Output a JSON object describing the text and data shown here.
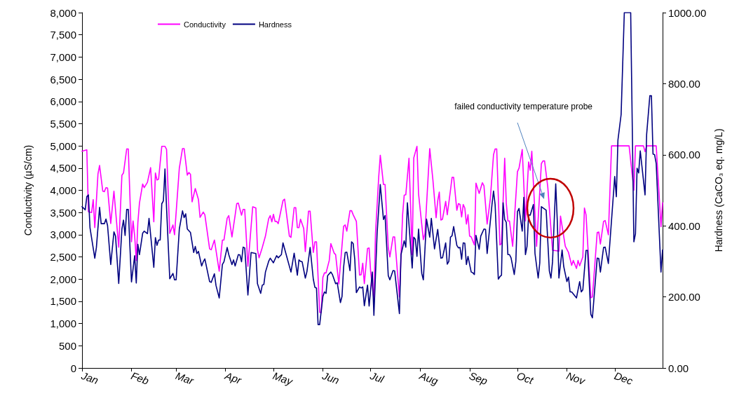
{
  "chart_data": {
    "type": "line",
    "ylabel": "Conductivity (µS/cm)",
    "y2label": "Hardness (CaCO₃ eq. mg/L)",
    "xlim": [
      "--01-01",
      "--12-31"
    ],
    "xticks": [
      {
        "value": "--01-01",
        "label": "Jan"
      },
      {
        "value": "--02-01",
        "label": "Feb"
      },
      {
        "value": "--03-01",
        "label": "Mar"
      },
      {
        "value": "--04-01",
        "label": "Apr"
      },
      {
        "value": "--05-01",
        "label": "May"
      },
      {
        "value": "--06-01",
        "label": "Jun"
      },
      {
        "value": "--07-01",
        "label": "Jul"
      },
      {
        "value": "--08-01",
        "label": "Aug"
      },
      {
        "value": "--09-01",
        "label": "Sep"
      },
      {
        "value": "--10-01",
        "label": "Oct"
      },
      {
        "value": "--11-01",
        "label": "Nov"
      },
      {
        "value": "--12-01",
        "label": "Dec"
      }
    ],
    "ylim": [
      0,
      8000
    ],
    "yticks": [
      0,
      500,
      {
        "value": 1000,
        "label": "1,000"
      },
      {
        "value": 1500,
        "label": "1,500"
      },
      {
        "value": 2000,
        "label": "2,000"
      },
      {
        "value": 2500,
        "label": "2,500"
      },
      {
        "value": 3000,
        "label": "3,000"
      },
      {
        "value": 3500,
        "label": "3,500"
      },
      {
        "value": 4000,
        "label": "4,000"
      },
      {
        "value": 4500,
        "label": "4,500"
      },
      {
        "value": 5000,
        "label": "5,000"
      },
      {
        "value": 5500,
        "label": "5,500"
      },
      {
        "value": 6000,
        "label": "6,000"
      },
      {
        "value": 6500,
        "label": "6,500"
      },
      {
        "value": 7000,
        "label": "7,000"
      },
      {
        "value": 7500,
        "label": "7,500"
      },
      {
        "value": 8000,
        "label": "8,000"
      }
    ],
    "y2lim": [
      0,
      1000
    ],
    "y2ticks": [
      {
        "value": 0,
        "label": "0.00"
      },
      {
        "value": 200,
        "label": "200.00"
      },
      {
        "value": 400,
        "label": "400.00"
      },
      {
        "value": 600,
        "label": "600.00"
      },
      {
        "value": 800,
        "label": "800.00"
      },
      {
        "value": 1000,
        "label": "1000.00"
      }
    ],
    "legend": "top left",
    "marker": "none",
    "line_style": "solid",
    "annotations": [
      "failed conductivity temperature probe"
    ],
    "series": [
      {
        "name": "Conductivity",
        "color": "#ff00ff",
        "x": [
          "--01-01",
          "--01-04",
          "--01-05",
          "--01-07",
          "--01-08",
          "--01-09",
          "--01-11",
          "--01-12",
          "--01-14",
          "--01-15",
          "--01-16",
          "--01-17",
          "--01-19",
          "--01-21",
          "--01-24",
          "--01-26",
          "--01-27",
          "--01-29",
          "--01-30",
          "--02-01",
          "--02-02",
          "--02-03",
          "--02-04",
          "--02-05",
          "--02-06",
          "--02-08",
          "--02-09",
          "--02-11",
          "--02-13",
          "--02-15",
          "--02-16",
          "--02-17",
          "--02-18",
          "--02-20",
          "--02-22",
          "--02-23",
          "--02-25",
          "--02-27",
          "--02-28",
          "--03-03",
          "--03-05",
          "--03-06",
          "--03-08",
          "--03-09",
          "--03-10",
          "--03-11",
          "--03-13",
          "--03-15",
          "--03-16",
          "--03-18",
          "--03-19",
          "--03-22",
          "--03-23",
          "--03-25",
          "--03-28",
          "--03-30",
          "--03-31",
          "--04-02",
          "--04-03",
          "--04-05",
          "--04-07",
          "--04-08",
          "--04-09",
          "--04-11",
          "--04-12",
          "--04-13",
          "--04-15",
          "--04-18",
          "--04-20",
          "--04-21",
          "--04-22",
          "--04-24",
          "--04-26",
          "--04-28",
          "--04-29",
          "--04-30",
          "--05-01",
          "--05-02",
          "--05-03",
          "--05-04",
          "--05-05",
          "--05-07",
          "--05-08",
          "--05-11",
          "--05-12",
          "--05-14",
          "--05-15",
          "--05-16",
          "--05-17",
          "--05-18",
          "--05-20",
          "--05-21",
          "--05-23",
          "--05-24",
          "--05-26",
          "--05-27",
          "--05-28",
          "--05-30",
          "--05-31",
          "--06-01",
          "--06-02",
          "--06-03",
          "--06-05",
          "--06-06",
          "--06-08",
          "--06-09",
          "--06-11",
          "--06-14",
          "--06-15",
          "--06-16",
          "--06-18",
          "--06-19",
          "--06-20",
          "--06-22",
          "--06-24",
          "--06-25",
          "--06-26",
          "--06-27",
          "--06-29",
          "--06-30",
          "--07-01",
          "--07-03",
          "--07-04",
          "--07-06",
          "--07-07",
          "--07-09",
          "--07-10",
          "--07-12",
          "--07-13",
          "--07-15",
          "--07-16",
          "--07-19",
          "--07-21",
          "--07-22",
          "--07-23",
          "--07-25",
          "--07-27",
          "--07-28",
          "--07-30",
          "--07-31",
          "--08-03",
          "--08-04",
          "--08-07",
          "--08-09",
          "--08-11",
          "--08-12",
          "--08-13",
          "--08-14",
          "--08-15",
          "--08-17",
          "--08-18",
          "--08-20",
          "--08-21",
          "--08-22",
          "--08-24",
          "--08-25",
          "--08-26",
          "--08-27",
          "--08-28",
          "--08-29",
          "--08-30",
          "--08-31",
          "--09-01",
          "--09-02",
          "--09-04",
          "--09-05",
          "--09-07",
          "--09-09",
          "--09-10",
          "--09-12",
          "--09-14",
          "--09-16",
          "--09-17",
          "--09-18",
          "--09-20",
          "--09-21",
          "--09-23",
          "--09-24",
          "--09-25",
          "--09-26",
          "--09-28",
          "--10-01",
          "--10-02",
          "--10-04",
          "--10-06",
          "--10-08",
          "--10-09",
          "--10-10",
          "--10-13",
          "--10-16",
          "--10-17",
          "--10-18",
          "--10-20",
          "--10-23",
          "--10-27",
          "--10-28",
          "--10-31",
          "--11-02",
          "--11-04",
          "--11-05",
          "--11-07",
          "--11-08",
          "--11-09",
          "--11-11",
          "--11-12",
          "--11-13",
          "--11-16",
          "--11-17",
          "--11-20",
          "--11-21",
          "--11-22",
          "--11-24",
          "--11-25",
          "--11-27",
          "--11-29",
          "--11-30",
          "--12-10",
          "--12-13",
          "--12-14",
          "--12-19",
          "--12-20",
          "--12-21",
          "--12-27",
          "--12-30",
          "--12-31"
        ],
        "values": [
          4880,
          4910,
          3520,
          3500,
          3790,
          3160,
          4370,
          4560,
          3980,
          3970,
          4060,
          4050,
          3250,
          3980,
          2720,
          4340,
          4390,
          4930,
          4930,
          2840,
          3310,
          2970,
          2420,
          3270,
          3710,
          4140,
          4060,
          4180,
          4510,
          3290,
          4390,
          4230,
          4250,
          4990,
          4990,
          4920,
          3030,
          3220,
          3000,
          4500,
          4940,
          4940,
          4340,
          4400,
          4360,
          3740,
          4040,
          3790,
          3390,
          3510,
          3450,
          2680,
          2660,
          2880,
          2180,
          2880,
          2880,
          3370,
          3430,
          2950,
          3440,
          3700,
          3710,
          3440,
          3570,
          3570,
          2290,
          3630,
          3600,
          2660,
          2480,
          2710,
          2970,
          3360,
          3430,
          3290,
          3460,
          3300,
          3300,
          3250,
          3420,
          3770,
          3800,
          2970,
          2940,
          3610,
          3610,
          3160,
          3160,
          3350,
          3140,
          2620,
          3530,
          3530,
          2600,
          2840,
          2840,
          1250,
          1250,
          2040,
          2140,
          2140,
          2420,
          2800,
          2590,
          2550,
          1890,
          3190,
          3220,
          3080,
          3540,
          3540,
          3450,
          3300,
          2090,
          2100,
          2360,
          1900,
          2690,
          2700,
          2150,
          1540,
          3030,
          4290,
          4790,
          4130,
          4130,
          2710,
          2500,
          2950,
          2950,
          1600,
          3450,
          3890,
          3900,
          4720,
          2550,
          4730,
          4990,
          3920,
          2890,
          3030,
          4940,
          4230,
          3380,
          3760,
          3960,
          3330,
          3350,
          3750,
          3450,
          4000,
          4290,
          4290,
          3550,
          3700,
          3680,
          3400,
          3680,
          3600,
          3240,
          3450,
          2970,
          2950,
          2770,
          4160,
          3930,
          4170,
          4100,
          3240,
          3810,
          4800,
          4930,
          4930,
          2770,
          2800,
          4720,
          3710,
          3310,
          3310,
          2740,
          4420,
          4500,
          4920,
          3310,
          4640,
          4450,
          4880,
          2740,
          4600,
          4660,
          4660,
          4080,
          2650,
          2630,
          3420,
          2740,
          2600,
          2310,
          2420,
          2240,
          2420,
          2300,
          2500,
          3600,
          3450,
          1580,
          1600,
          3050,
          3060,
          2790,
          3300,
          3320,
          3000,
          5000,
          5000,
          5000,
          4000,
          5000,
          5000,
          4870,
          5000,
          5000,
          3180,
          3720
        ]
      },
      {
        "name": "Hardness",
        "color": "#000080",
        "axis": "y2",
        "x": [
          "--01-01",
          "--01-03",
          "--01-04",
          "--01-05",
          "--01-06",
          "--01-09",
          "--01-10",
          "--01-12",
          "--01-13",
          "--01-15",
          "--01-16",
          "--01-17",
          "--01-19",
          "--01-21",
          "--01-22",
          "--01-24",
          "--01-26",
          "--01-27",
          "--01-28",
          "--01-29",
          "--01-30",
          "--02-01",
          "--02-03",
          "--02-04",
          "--02-05",
          "--02-06",
          "--02-08",
          "--02-09",
          "--02-11",
          "--02-12",
          "--02-15",
          "--02-16",
          "--02-17",
          "--02-18",
          "--02-19",
          "--02-20",
          "--02-21",
          "--02-22",
          "--02-23",
          "--02-25",
          "--02-27",
          "--02-28",
          "--03-01",
          "--03-03",
          "--03-05",
          "--03-06",
          "--03-07",
          "--03-08",
          "--03-10",
          "--03-12",
          "--03-13",
          "--03-14",
          "--03-15",
          "--03-17",
          "--03-18",
          "--03-19",
          "--03-22",
          "--03-23",
          "--03-25",
          "--03-26",
          "--03-28",
          "--03-30",
          "--03-31",
          "--04-02",
          "--04-03",
          "--04-05",
          "--04-06",
          "--04-07",
          "--04-09",
          "--04-10",
          "--04-11",
          "--04-12",
          "--04-13",
          "--04-15",
          "--04-17",
          "--04-20",
          "--04-21",
          "--04-23",
          "--04-24",
          "--04-25",
          "--04-26",
          "--04-28",
          "--04-29",
          "--05-01",
          "--05-03",
          "--05-04",
          "--05-06",
          "--05-07",
          "--05-09",
          "--05-12",
          "--05-14",
          "--05-16",
          "--05-17",
          "--05-18",
          "--05-19",
          "--05-21",
          "--05-22",
          "--05-24",
          "--05-26",
          "--05-27",
          "--05-28",
          "--05-29",
          "--05-30",
          "--06-01",
          "--06-02",
          "--06-03",
          "--06-04",
          "--06-06",
          "--06-07",
          "--06-09",
          "--06-10",
          "--06-12",
          "--06-13",
          "--06-14",
          "--06-15",
          "--06-16",
          "--06-18",
          "--06-19",
          "--06-20",
          "--06-21",
          "--06-22",
          "--06-24",
          "--06-25",
          "--06-26",
          "--06-27",
          "--06-29",
          "--06-30",
          "--07-02",
          "--07-03",
          "--07-05",
          "--07-07",
          "--07-09",
          "--07-10",
          "--07-12",
          "--07-13",
          "--07-15",
          "--07-16",
          "--07-19",
          "--07-20",
          "--07-22",
          "--07-23",
          "--07-24",
          "--07-27",
          "--07-28",
          "--07-29",
          "--07-30",
          "--07-31",
          "--08-02",
          "--08-03",
          "--08-05",
          "--08-07",
          "--08-08",
          "--08-10",
          "--08-12",
          "--08-14",
          "--08-15",
          "--08-17",
          "--08-18",
          "--08-19",
          "--08-20",
          "--08-21",
          "--08-22",
          "--08-24",
          "--08-25",
          "--08-26",
          "--08-27",
          "--08-28",
          "--08-29",
          "--08-30",
          "--08-31",
          "--09-02",
          "--09-03",
          "--09-04",
          "--09-05",
          "--09-07",
          "--09-08",
          "--09-10",
          "--09-11",
          "--09-12",
          "--09-15",
          "--09-16",
          "--09-17",
          "--09-19",
          "--09-20",
          "--09-21",
          "--09-22",
          "--09-23",
          "--09-24",
          "--09-25",
          "--09-26",
          "--09-27",
          "--09-29",
          "--09-30",
          "--10-01",
          "--10-02",
          "--10-04",
          "--10-05",
          "--10-06",
          "--10-07",
          "--10-08",
          "--10-09",
          "--10-11",
          "--10-12",
          "--10-14",
          "--10-15",
          "--10-16",
          "--10-19",
          "--10-21",
          "--10-22",
          "--10-23",
          "--10-25",
          "--10-26",
          "--10-27",
          "--10-29",
          "--10-30",
          "--11-01",
          "--11-02",
          "--11-03",
          "--11-04",
          "--11-07",
          "--11-09",
          "--11-10",
          "--11-11",
          "--11-13",
          "--11-14",
          "--11-16",
          "--11-17",
          "--11-20",
          "--11-21",
          "--11-22",
          "--11-24",
          "--11-25",
          "--11-27",
          "--12-01",
          "--12-02",
          "--12-03",
          "--12-05",
          "--12-07",
          "--12-11",
          "--12-13",
          "--12-14",
          "--12-15",
          "--12-16",
          "--12-17",
          "--12-20",
          "--12-21",
          "--12-23",
          "--12-24",
          "--12-25",
          "--12-26",
          "--12-27",
          "--12-30",
          "--12-31"
        ],
        "values": [
          454,
          445,
          482,
          487,
          394,
          309,
          339,
          452,
          406,
          406,
          419,
          401,
          291,
          383,
          371,
          238,
          391,
          416,
          373,
          446,
          446,
          242,
          316,
          239,
          348,
          319,
          379,
          385,
          378,
          421,
          283,
          367,
          345,
          360,
          360,
          462,
          470,
          560,
          450,
          251,
          266,
          248,
          248,
          391,
          442,
          423,
          434,
          391,
          381,
          325,
          342,
          322,
          328,
          287,
          299,
          307,
          243,
          241,
          265,
          232,
          197,
          291,
          299,
          339,
          319,
          291,
          304,
          287,
          319,
          318,
          299,
          340,
          338,
          205,
          325,
          322,
          237,
          210,
          233,
          235,
          270,
          300,
          309,
          296,
          316,
          310,
          319,
          352,
          319,
          270,
          323,
          261,
          304,
          300,
          299,
          253,
          271,
          339,
          250,
          227,
          225,
          122,
          122,
          201,
          214,
          210,
          260,
          270,
          263,
          237,
          240,
          184,
          201,
          283,
          325,
          326,
          274,
          355,
          350,
          306,
          212,
          228,
          225,
          228,
          175,
          233,
          174,
          270,
          148,
          378,
          516,
          418,
          429,
          260,
          248,
          274,
          273,
          153,
          319,
          358,
          340,
          465,
          281,
          368,
          362,
          314,
          391,
          266,
          248,
          419,
          368,
          421,
          335,
          390,
          309,
          310,
          352,
          292,
          300,
          368,
          372,
          398,
          345,
          338,
          339,
          306,
          352,
          351,
          291,
          314,
          270,
          268,
          263,
          373,
          334,
          371,
          391,
          390,
          322,
          458,
          498,
          460,
          250,
          257,
          261,
          465,
          418,
          410,
          319,
          319,
          310,
          263,
          300,
          440,
          449,
          385,
          480,
          319,
          342,
          431,
          430,
          460,
          322,
          253,
          296,
          454,
          444,
          273,
          253,
          299,
          518,
          411,
          253,
          332,
          286,
          243,
          256,
          214,
          214,
          197,
          243,
          214,
          220,
          331,
          331,
          151,
          141,
          309,
          308,
          270,
          339,
          340,
          294,
          539,
          482,
          641,
          713,
          1000,
          1000,
          355,
          378,
          562,
          549,
          611,
          487,
          657,
          766,
          766,
          602,
          600,
          575,
          270,
          332
        ]
      }
    ]
  }
}
